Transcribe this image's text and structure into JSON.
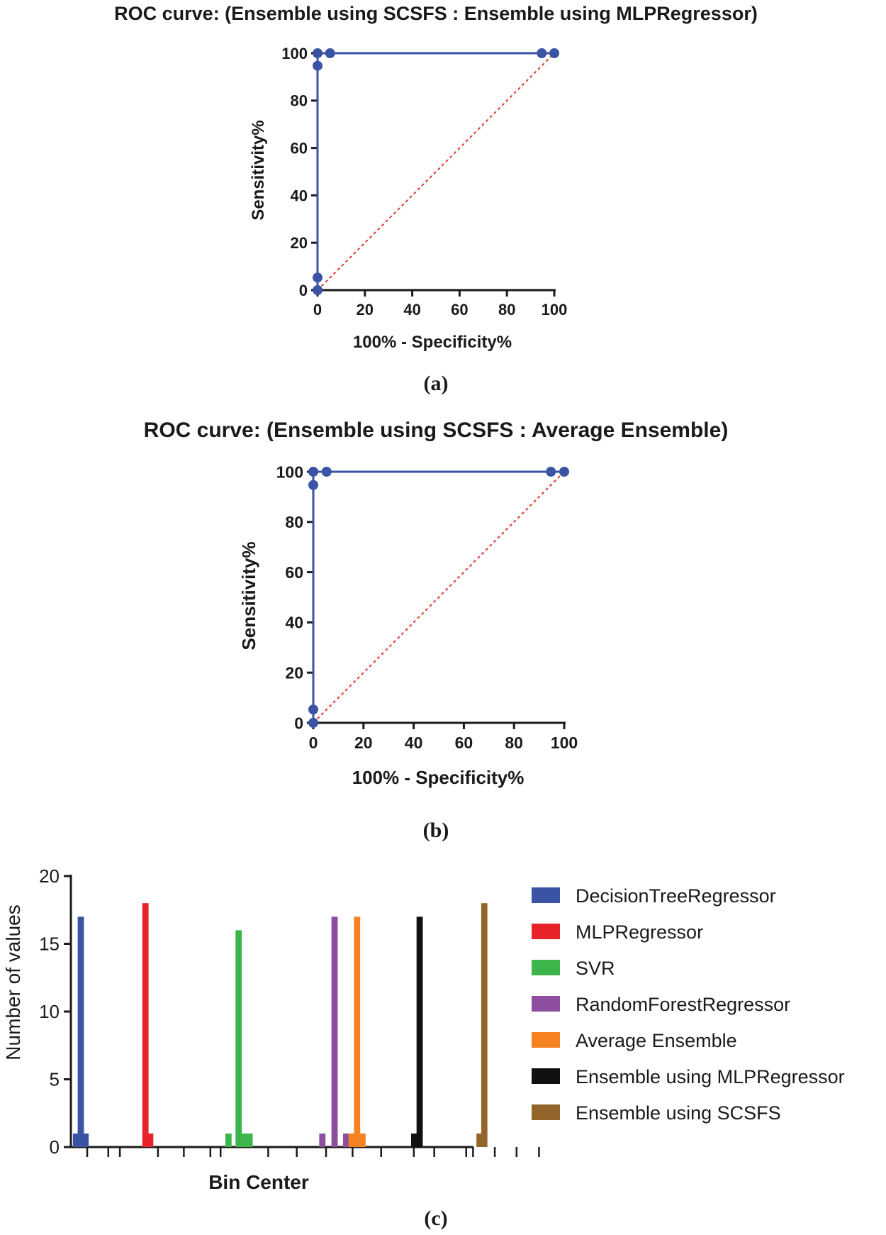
{
  "colors": {
    "roc_line": "#3a53a4",
    "diagonal": "#e8322c",
    "axis": "#1a1a1a"
  },
  "chart_data": [
    {
      "type": "line",
      "panel": "a",
      "caption": "(a)",
      "title": "ROC curve: (Ensemble using SCSFS : Ensemble using MLPRegressor)",
      "xlabel": "100% - Specificity%",
      "ylabel": "Sensitivity%",
      "xlim": [
        0,
        100
      ],
      "ylim": [
        0,
        100
      ],
      "xticks": [
        "0",
        "20",
        "40",
        "60",
        "80",
        "100"
      ],
      "yticks": [
        "0",
        "20",
        "40",
        "60",
        "80",
        "100"
      ],
      "series": [
        {
          "name": "ROC",
          "x": [
            0,
            0,
            0,
            0,
            5.3,
            94.7,
            100
          ],
          "y": [
            0,
            5.3,
            94.7,
            100,
            100,
            100,
            100
          ]
        },
        {
          "name": "Reference",
          "x": [
            0,
            100
          ],
          "y": [
            0,
            100
          ],
          "style": "dashed"
        }
      ]
    },
    {
      "type": "line",
      "panel": "b",
      "caption": "(b)",
      "title": "ROC curve: (Ensemble using SCSFS : Average Ensemble)",
      "xlabel": "100% - Specificity%",
      "ylabel": "Sensitivity%",
      "xlim": [
        0,
        100
      ],
      "ylim": [
        0,
        100
      ],
      "xticks": [
        "0",
        "20",
        "40",
        "60",
        "80",
        "100"
      ],
      "yticks": [
        "0",
        "20",
        "40",
        "60",
        "80",
        "100"
      ],
      "series": [
        {
          "name": "ROC",
          "x": [
            0,
            0,
            0,
            0,
            5.3,
            94.7,
            100
          ],
          "y": [
            0,
            5.3,
            94.7,
            100,
            100,
            100,
            100
          ]
        },
        {
          "name": "Reference",
          "x": [
            0,
            100
          ],
          "y": [
            0,
            100
          ],
          "style": "dashed"
        }
      ]
    },
    {
      "type": "bar",
      "panel": "c",
      "caption": "(c)",
      "title": "",
      "xlabel": "Bin Center",
      "ylabel": "Number of values",
      "ylim": [
        0,
        20
      ],
      "yticks": [
        "0",
        "5",
        "10",
        "15",
        "20"
      ],
      "series": [
        {
          "name": "DecisionTreeRegressor",
          "color": "#3a53a4",
          "bins": [
            0.3,
            1.0,
            1.7
          ],
          "values": [
            1,
            17,
            1
          ]
        },
        {
          "name": "MLPRegressor",
          "color": "#e8232a",
          "bins": [
            10.5,
            11.2
          ],
          "values": [
            18,
            1
          ]
        },
        {
          "name": "SVR",
          "color": "#3cb54a",
          "bins": [
            22.7,
            24.2,
            25.0,
            25.8
          ],
          "values": [
            1,
            16,
            1,
            1
          ]
        },
        {
          "name": "RandomForestRegressor",
          "color": "#8e4d9e",
          "bins": [
            36.5,
            38.3,
            40.0
          ],
          "values": [
            1,
            17,
            1
          ]
        },
        {
          "name": "Average Ensemble",
          "color": "#f48221",
          "bins": [
            40.8,
            41.6,
            42.4
          ],
          "values": [
            1,
            17,
            1
          ]
        },
        {
          "name": "Ensemble using MLPRegressor",
          "color": "#111111",
          "bins": [
            50.0,
            50.8
          ],
          "values": [
            1,
            17
          ]
        },
        {
          "name": "Ensemble using SCSFS",
          "color": "#93652a",
          "bins": [
            59.6,
            60.3
          ],
          "values": [
            1,
            18
          ]
        }
      ]
    }
  ]
}
